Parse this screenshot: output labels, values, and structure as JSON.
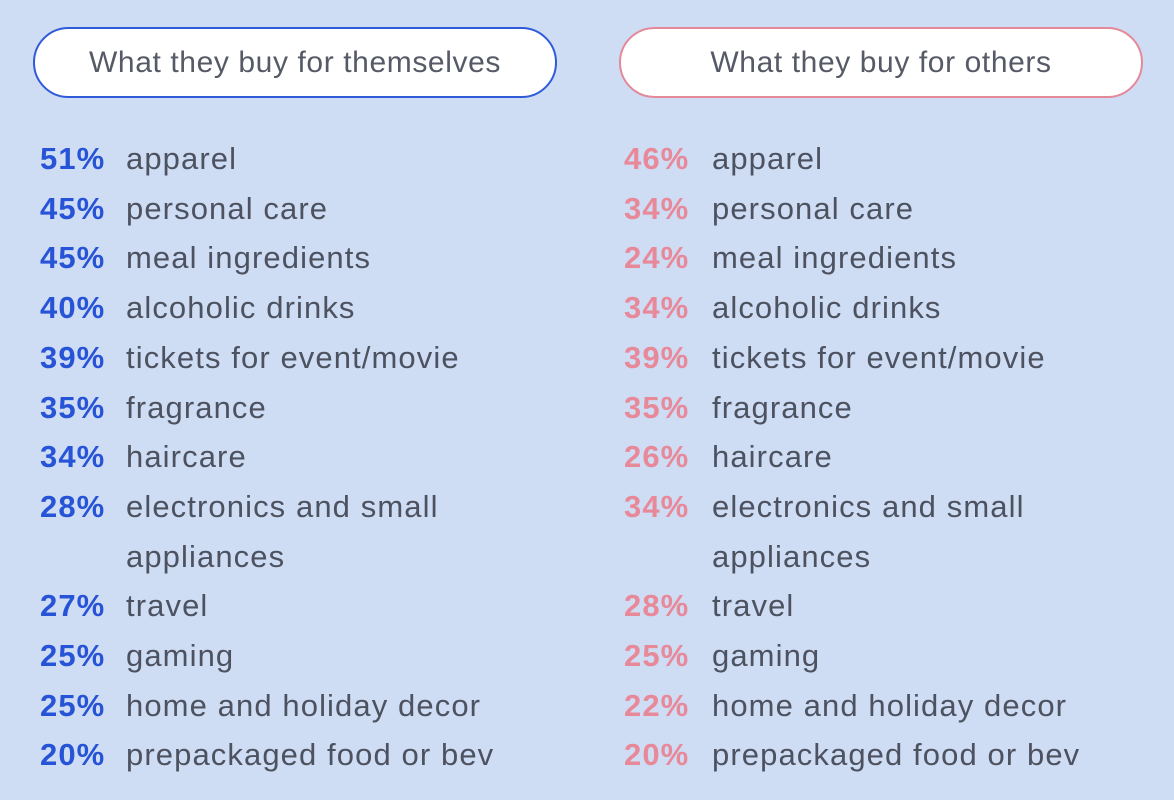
{
  "columns": [
    {
      "title": "What they buy for themselves",
      "items": [
        {
          "percent": "51%",
          "label": "apparel"
        },
        {
          "percent": "45%",
          "label": "personal care"
        },
        {
          "percent": "45%",
          "label": "meal ingredients"
        },
        {
          "percent": "40%",
          "label": "alcoholic drinks"
        },
        {
          "percent": "39%",
          "label": "tickets for event/movie"
        },
        {
          "percent": "35%",
          "label": "fragrance"
        },
        {
          "percent": "34%",
          "label": "haircare"
        },
        {
          "percent": "28%",
          "label": "electronics and small appliances"
        },
        {
          "percent": "27%",
          "label": "travel"
        },
        {
          "percent": "25%",
          "label": "gaming"
        },
        {
          "percent": "25%",
          "label": "home and holiday decor"
        },
        {
          "percent": "20%",
          "label": "prepackaged food or bev"
        }
      ]
    },
    {
      "title": "What they buy for others",
      "items": [
        {
          "percent": "46%",
          "label": "apparel"
        },
        {
          "percent": "34%",
          "label": "personal care"
        },
        {
          "percent": "24%",
          "label": "meal ingredients"
        },
        {
          "percent": "34%",
          "label": "alcoholic drinks"
        },
        {
          "percent": "39%",
          "label": "tickets for event/movie"
        },
        {
          "percent": "35%",
          "label": "fragrance"
        },
        {
          "percent": "26%",
          "label": "haircare"
        },
        {
          "percent": "34%",
          "label": "electronics and small appliances"
        },
        {
          "percent": "28%",
          "label": "travel"
        },
        {
          "percent": "25%",
          "label": "gaming"
        },
        {
          "percent": "22%",
          "label": "home and holiday decor"
        },
        {
          "percent": "20%",
          "label": "prepackaged food or bev"
        }
      ]
    }
  ]
}
